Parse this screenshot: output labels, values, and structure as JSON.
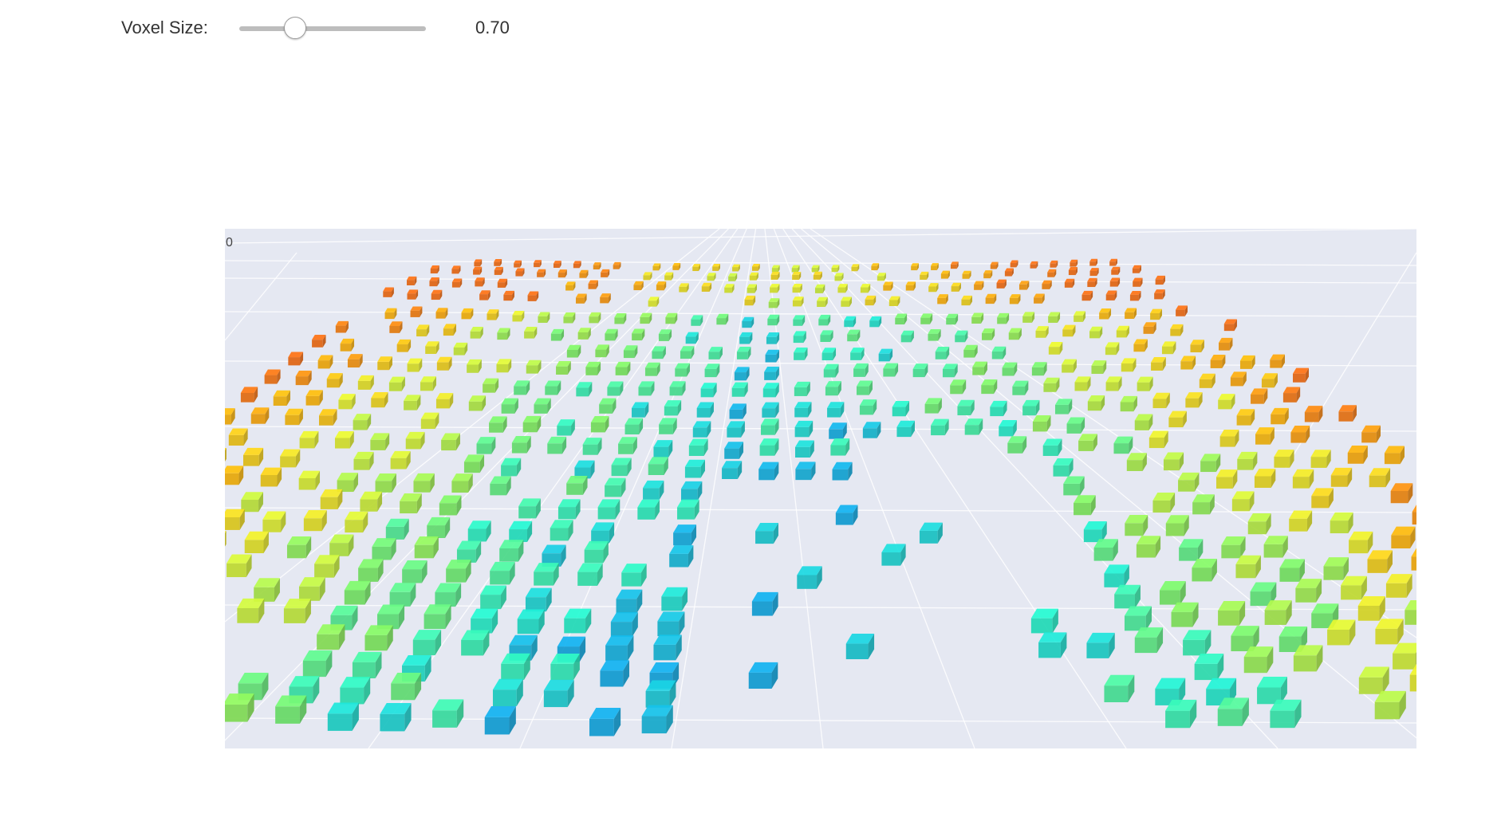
{
  "controls": {
    "voxel_size_label": "Voxel Size:",
    "voxel_size_value": "0.70",
    "voxel_size_fraction": 0.3
  },
  "scene": {
    "axis_tick_label": "0",
    "background_color": "#e5e8f2",
    "grid_color": "#ffffff",
    "colorscale": [
      "#0a8fe8",
      "#21e8c4",
      "#7ae860",
      "#dde82b",
      "#f7b20a",
      "#f06a12"
    ]
  }
}
